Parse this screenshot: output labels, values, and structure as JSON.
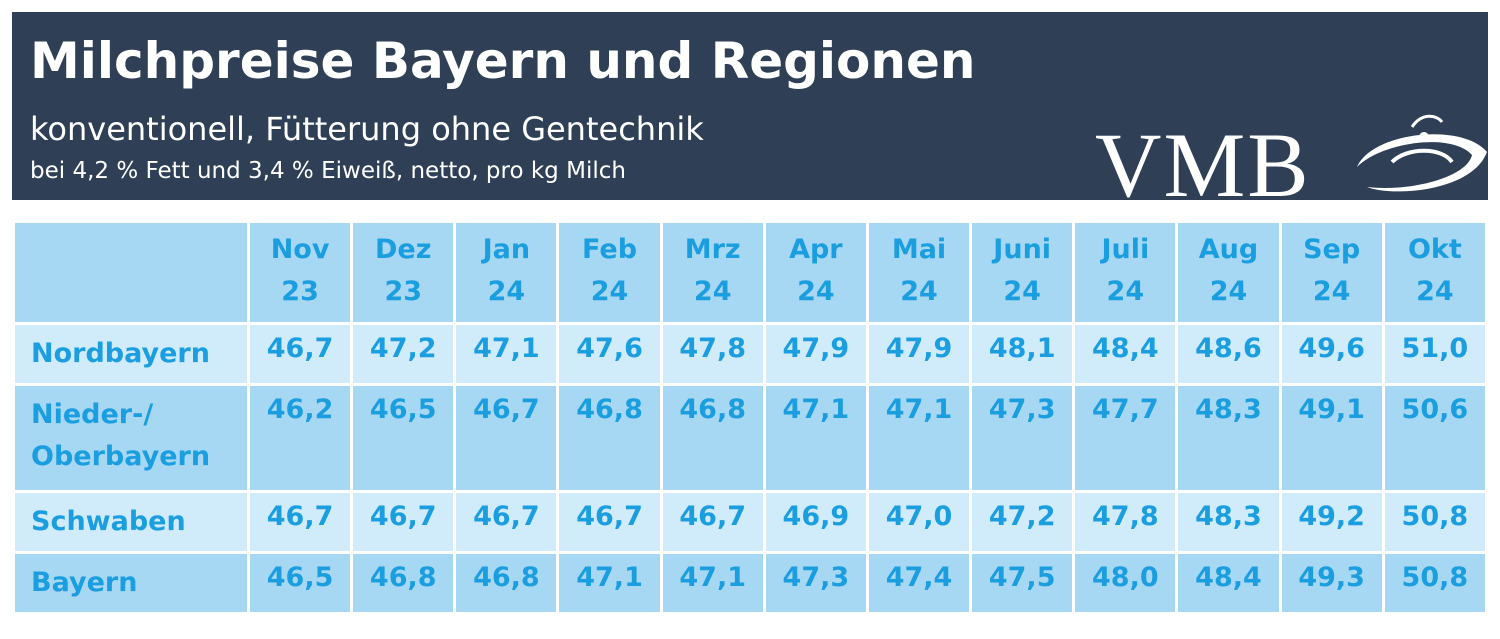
{
  "header": {
    "title": "Milchpreise Bayern und Regionen",
    "subtitle": "konventionell, Fütterung ohne Gentechnik",
    "note": "bei 4,2 % Fett und 3,4 % Eiweiß, netto, pro kg Milch",
    "logo": "VMB"
  },
  "table": {
    "columns": [
      {
        "month": "Nov",
        "year": "23"
      },
      {
        "month": "Dez",
        "year": "23"
      },
      {
        "month": "Jan",
        "year": "24"
      },
      {
        "month": "Feb",
        "year": "24"
      },
      {
        "month": "Mrz",
        "year": "24"
      },
      {
        "month": "Apr",
        "year": "24"
      },
      {
        "month": "Mai",
        "year": "24"
      },
      {
        "month": "Juni",
        "year": "24"
      },
      {
        "month": "Juli",
        "year": "24"
      },
      {
        "month": "Aug",
        "year": "24"
      },
      {
        "month": "Sep",
        "year": "24"
      },
      {
        "month": "Okt",
        "year": "24"
      }
    ],
    "rows": [
      {
        "label": "Nordbayern",
        "values": [
          "46,7",
          "47,2",
          "47,1",
          "47,6",
          "47,8",
          "47,9",
          "47,9",
          "48,1",
          "48,4",
          "48,6",
          "49,6",
          "51,0"
        ]
      },
      {
        "label": "Nieder-/ Oberbayern",
        "values": [
          "46,2",
          "46,5",
          "46,7",
          "46,8",
          "46,8",
          "47,1",
          "47,1",
          "47,3",
          "47,7",
          "48,3",
          "49,1",
          "50,6"
        ]
      },
      {
        "label": "Schwaben",
        "values": [
          "46,7",
          "46,7",
          "46,7",
          "46,7",
          "46,7",
          "46,9",
          "47,0",
          "47,2",
          "47,8",
          "48,3",
          "49,2",
          "50,8"
        ]
      },
      {
        "label": "Bayern",
        "values": [
          "46,5",
          "46,8",
          "46,8",
          "47,1",
          "47,1",
          "47,3",
          "47,4",
          "47,5",
          "48,0",
          "48,4",
          "49,3",
          "50,8"
        ]
      }
    ]
  }
}
